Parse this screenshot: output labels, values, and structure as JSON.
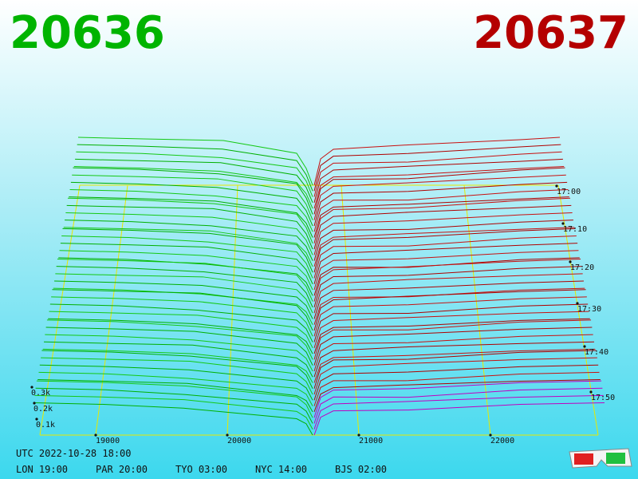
{
  "header": {
    "bid": "20636",
    "ask": "20637"
  },
  "axes": {
    "price_labels": [
      "19000",
      "20000",
      "21000",
      "22000"
    ],
    "time_labels": [
      "17:00",
      "17:10",
      "17:20",
      "17:30",
      "17:40",
      "17:50"
    ],
    "depth_labels": [
      "0.3k",
      "0.2k",
      "0.1k"
    ]
  },
  "footer": {
    "utc": "UTC 2022-10-28 18:00",
    "clocks": [
      "LON 19:00",
      "PAR 20:00",
      "TYO 03:00",
      "NYC 14:00",
      "BJS 02:00"
    ]
  }
}
